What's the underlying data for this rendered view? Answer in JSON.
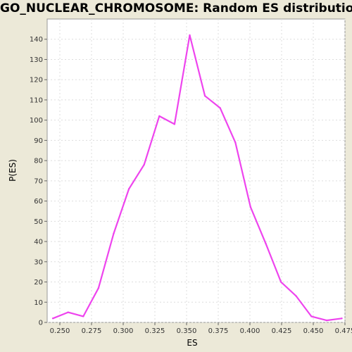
{
  "chart_data": {
    "type": "line",
    "title": "GO_NUCLEAR_CHROMOSOME: Random ES distribution",
    "xlabel": "ES",
    "ylabel": "P(ES)",
    "xlim": [
      0.24,
      0.475
    ],
    "ylim": [
      0,
      150
    ],
    "xticks": [
      "0.250",
      "0.275",
      "0.300",
      "0.325",
      "0.350",
      "0.375",
      "0.400",
      "0.425",
      "0.450",
      "0.475"
    ],
    "yticks": [
      "0",
      "10",
      "20",
      "30",
      "40",
      "50",
      "60",
      "70",
      "80",
      "90",
      "100",
      "110",
      "120",
      "130",
      "140"
    ],
    "grid": true,
    "series": [
      {
        "color": "#ee44ee",
        "x": [
          0.2445,
          0.2565,
          0.2685,
          0.2805,
          0.2925,
          0.3045,
          0.3165,
          0.3285,
          0.3405,
          0.3525,
          0.3645,
          0.3765,
          0.3885,
          0.4005,
          0.4125,
          0.4245,
          0.4365,
          0.4485,
          0.4605,
          0.4725
        ],
        "y": [
          2,
          5,
          3,
          17,
          44,
          66,
          78,
          102,
          98,
          142,
          112,
          106,
          89,
          57,
          39,
          20,
          13,
          3,
          1,
          2
        ]
      }
    ]
  }
}
